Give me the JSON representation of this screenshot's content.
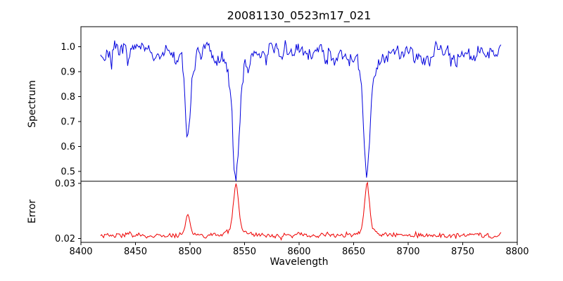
{
  "title": "20081130_0523m17_021",
  "axes": {
    "xlabel": "Wavelength",
    "xlim": [
      8400,
      8800
    ],
    "x_ticks": [
      8400,
      8450,
      8500,
      8550,
      8600,
      8650,
      8700,
      8750,
      8800
    ],
    "x_tick_labels": [
      "8400",
      "8450",
      "8500",
      "8550",
      "8600",
      "8650",
      "8700",
      "8750",
      "8800"
    ],
    "top": {
      "ylabel": "Spectrum",
      "ylim": [
        0.46,
        1.08
      ],
      "y_ticks": [
        0.5,
        0.6,
        0.7,
        0.8,
        0.9,
        1.0
      ],
      "y_tick_labels": [
        "0.5",
        "0.6",
        "0.7",
        "0.8",
        "0.9",
        "1.0"
      ]
    },
    "bottom": {
      "ylabel": "Error",
      "ylim": [
        0.0193,
        0.0304
      ],
      "y_ticks": [
        0.02,
        0.03
      ],
      "y_tick_labels": [
        "0.02",
        "0.03"
      ]
    }
  },
  "chart_data": {
    "type": "line",
    "title": "20081130_0523m17_021",
    "xlabel": "Wavelength",
    "grid": false,
    "legend": false,
    "x_range": [
      8418,
      8786
    ],
    "sampling_step": 0.92,
    "seed": 7,
    "series": [
      {
        "name": "spectrum",
        "axis": "top",
        "color": "#0000dd",
        "continuum": 0.975,
        "noise_sigma": 0.018,
        "absorption_lines": [
          {
            "center": 8498.0,
            "depth": 0.34,
            "width": 2.2
          },
          {
            "center": 8542.1,
            "depth": 0.49,
            "width": 3.0
          },
          {
            "center": 8662.1,
            "depth": 0.48,
            "width": 2.8
          }
        ]
      },
      {
        "name": "error",
        "axis": "bottom",
        "color": "#ee0000",
        "baseline": 0.0206,
        "noise_sigma": 0.00022,
        "emission_peaks": [
          {
            "center": 8498.0,
            "height": 0.0038,
            "width": 1.8
          },
          {
            "center": 8542.1,
            "height": 0.0092,
            "width": 2.2
          },
          {
            "center": 8662.1,
            "height": 0.0094,
            "width": 2.0
          }
        ]
      }
    ]
  }
}
